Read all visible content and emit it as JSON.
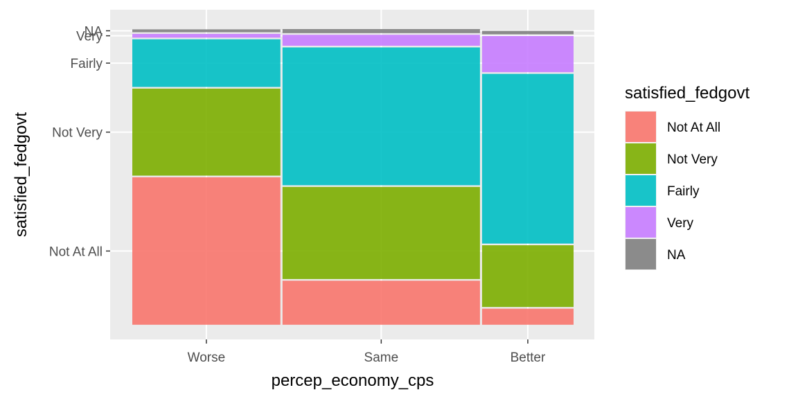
{
  "chart_data": {
    "type": "mosaic",
    "xlabel": "percep_economy_cps",
    "ylabel": "satisfied_fedgovt",
    "legend_title": "satisfied_fedgovt",
    "legend_position": "right",
    "grid": true,
    "x_categories": [
      "Worse",
      "Same",
      "Better"
    ],
    "x_widths": [
      0.369,
      0.492,
      0.228
    ],
    "y_categories": [
      "Not At All",
      "Not Very",
      "Fairly",
      "Very",
      "NA"
    ],
    "series": [
      {
        "name": "Not At All",
        "color": "#F8766D",
        "values": [
          0.496,
          0.152,
          0.059
        ]
      },
      {
        "name": "Not Very",
        "color": "#7CAE00",
        "values": [
          0.295,
          0.312,
          0.211
        ]
      },
      {
        "name": "Fairly",
        "color": "#00BFC4",
        "values": [
          0.164,
          0.464,
          0.57
        ]
      },
      {
        "name": "Very",
        "color": "#C77CFF",
        "values": [
          0.018,
          0.042,
          0.126
        ]
      },
      {
        "name": "NA",
        "color": "#7F7F7F",
        "values": [
          0.015,
          0.019,
          0.017
        ]
      }
    ],
    "y_tick_labels": [
      "Not At All",
      "Not Very",
      "Fairly",
      "Very",
      "NA"
    ]
  }
}
